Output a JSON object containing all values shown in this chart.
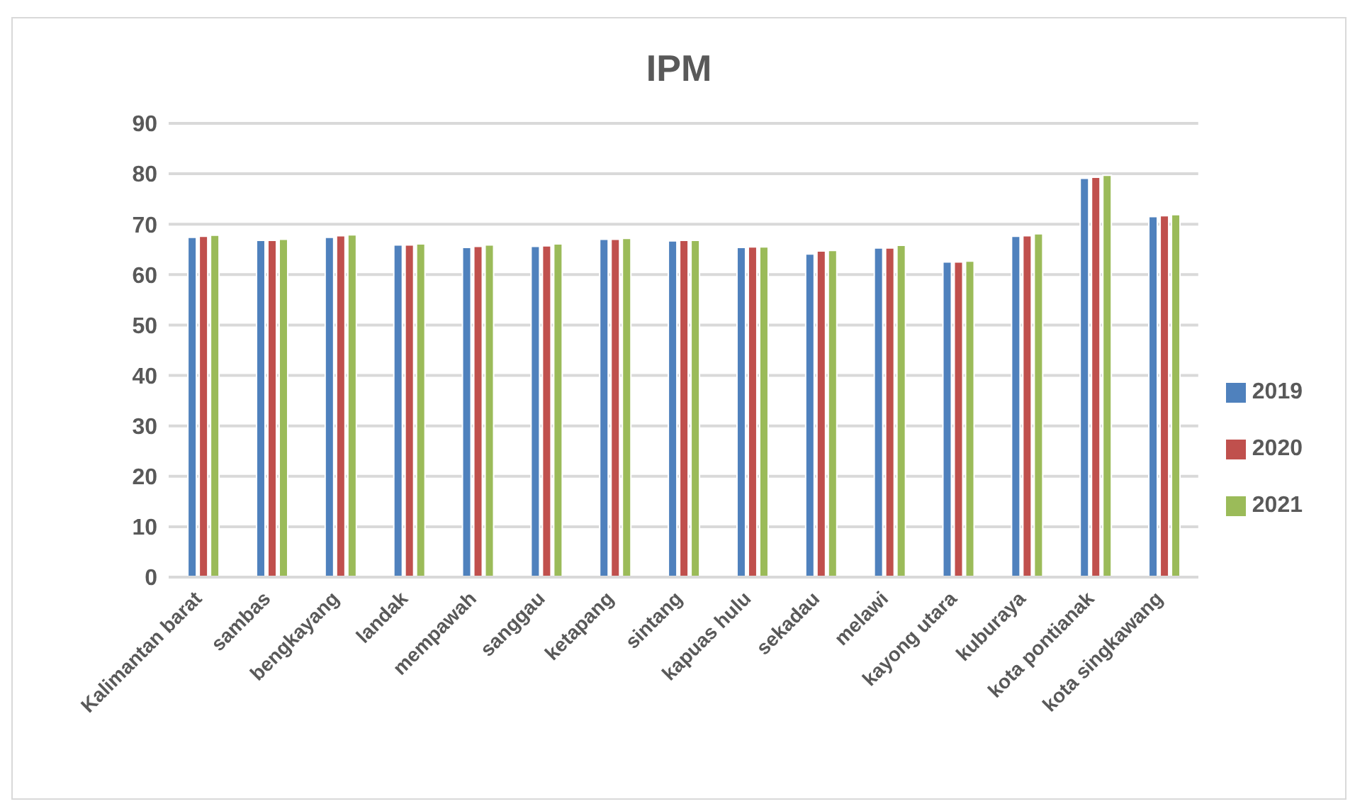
{
  "chart_data": {
    "type": "bar",
    "title": "IPM",
    "categories": [
      "Kalimantan barat",
      "sambas",
      "bengkayang",
      "landak",
      "mempawah",
      "sanggau",
      "ketapang",
      "sintang",
      "kapuas hulu",
      "sekadau",
      "melawi",
      "kayong utara",
      "kuburaya",
      "kota pontianak",
      "kota singkawang"
    ],
    "series": [
      {
        "name": "2019",
        "color": "#4f81bd",
        "values": [
          67.4,
          66.8,
          67.4,
          65.9,
          65.4,
          65.6,
          67.0,
          66.7,
          65.4,
          64.1,
          65.3,
          62.5,
          67.6,
          79.1,
          71.5
        ]
      },
      {
        "name": "2020",
        "color": "#c0504d",
        "values": [
          67.6,
          66.8,
          67.7,
          65.9,
          65.6,
          65.7,
          67.0,
          66.8,
          65.5,
          64.7,
          65.3,
          62.5,
          67.7,
          79.3,
          71.7
        ]
      },
      {
        "name": "2021",
        "color": "#9bbb59",
        "values": [
          67.8,
          67.0,
          67.9,
          66.1,
          65.9,
          66.1,
          67.2,
          66.8,
          65.5,
          64.8,
          65.8,
          62.7,
          68.1,
          79.7,
          71.9
        ]
      }
    ],
    "ylim": [
      0,
      90
    ],
    "yticks": [
      0,
      10,
      20,
      30,
      40,
      50,
      60,
      70,
      80,
      90
    ],
    "grid": "y",
    "legend": "right"
  }
}
